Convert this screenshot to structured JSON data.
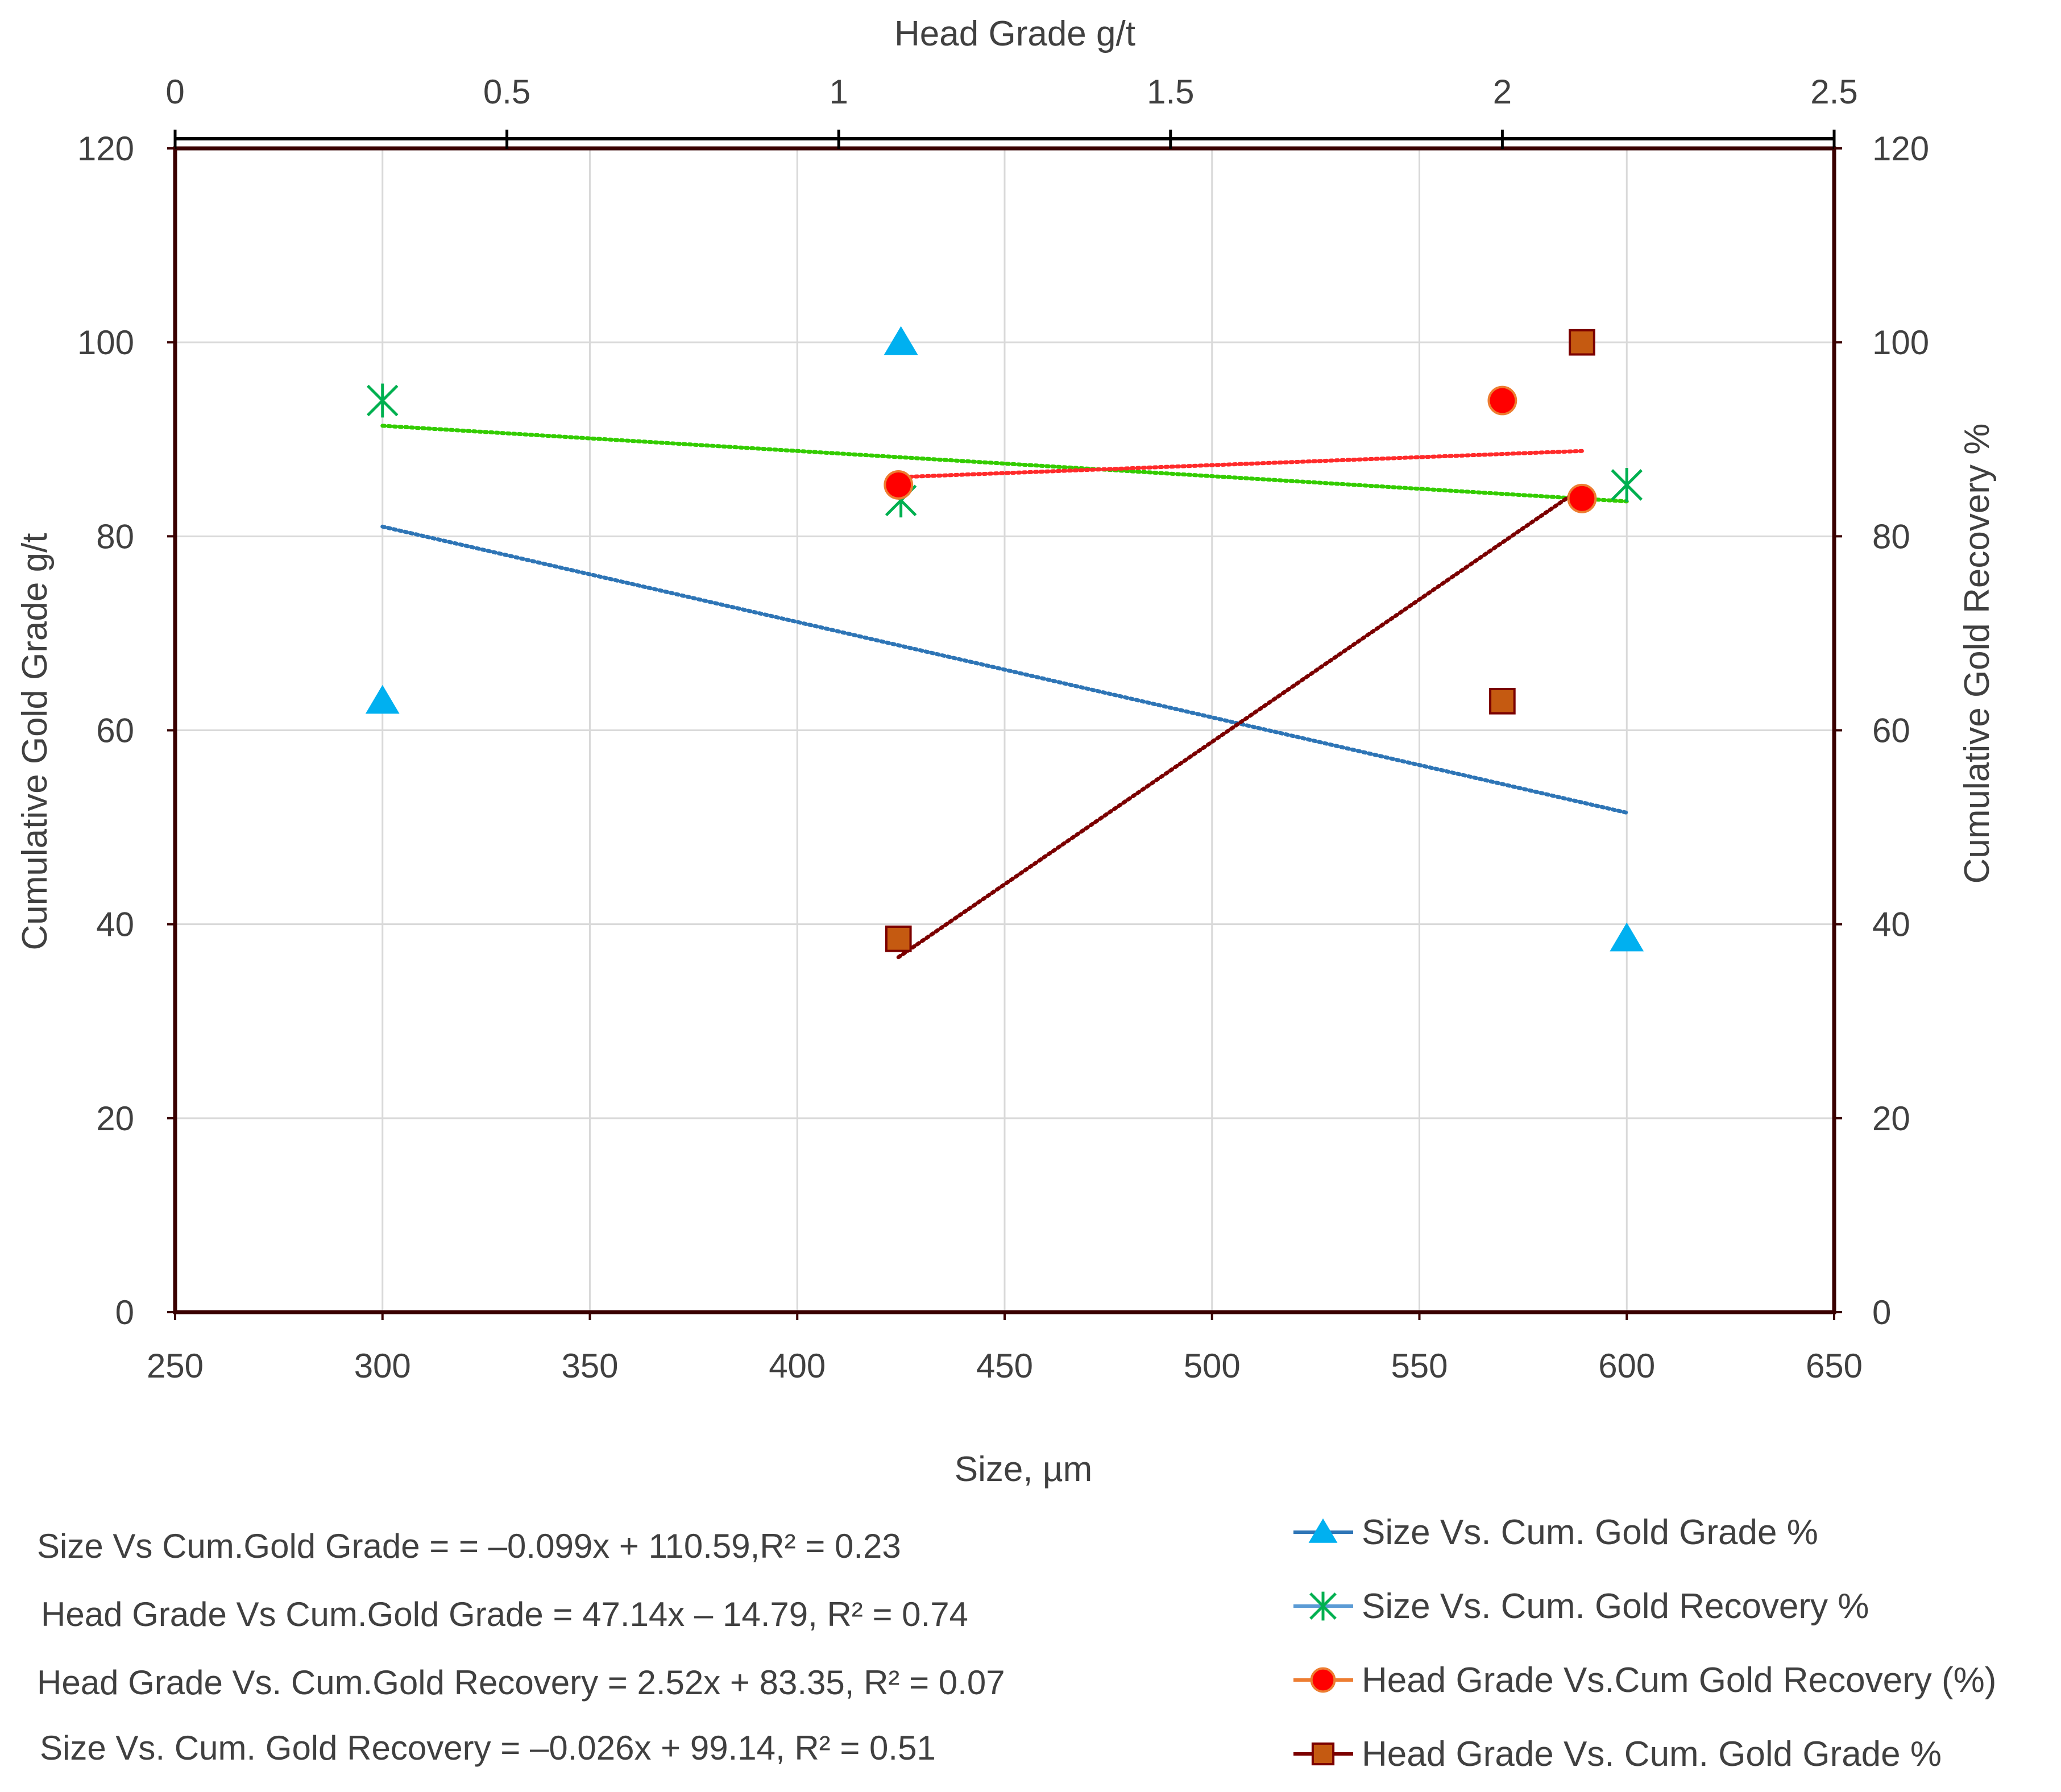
{
  "chart_data": {
    "type": "scatter",
    "axes": {
      "bottom": {
        "label": "Size, µm",
        "range": [
          250,
          650
        ],
        "ticks": [
          "250",
          "300",
          "350",
          "400",
          "450",
          "500",
          "550",
          "600",
          "650"
        ]
      },
      "top": {
        "label": "Head Grade g/t",
        "range": [
          0,
          2.5
        ],
        "ticks": [
          "0",
          "0.5",
          "1",
          "1.5",
          "2",
          "2.5"
        ]
      },
      "left": {
        "label": "Cumulative  Gold Grade g/t",
        "range": [
          0,
          120
        ],
        "ticks": [
          "0",
          "20",
          "40",
          "60",
          "80",
          "100",
          "120"
        ]
      },
      "right": {
        "label": "Cumulative Gold Recovery %",
        "range": [
          0,
          120
        ],
        "ticks": [
          "0",
          "20",
          "40",
          "60",
          "80",
          "100",
          "120"
        ]
      },
      "grid": "vertical and horizontal"
    },
    "series": [
      {
        "name": "Size Vs. Cum. Gold Grade %",
        "x_axis": "bottom",
        "y_axis": "left",
        "marker": "triangle",
        "color": "#00B0F0",
        "line_color": "#2E75B6",
        "points": [
          {
            "x": 300,
            "y": 63
          },
          {
            "x": 425,
            "y": 100
          },
          {
            "x": 600,
            "y": 38.5
          }
        ],
        "trend": {
          "color": "#2E75B6",
          "from": {
            "x": 300,
            "y": 81
          },
          "to": {
            "x": 600,
            "y": 51.5
          }
        }
      },
      {
        "name": "Size Vs. Cum. Gold Recovery %",
        "x_axis": "bottom",
        "y_axis": "right",
        "marker": "asterisk",
        "color": "#00B050",
        "line_color": "#5B9BD5",
        "points": [
          {
            "x": 300,
            "y": 94
          },
          {
            "x": 425,
            "y": 83.7
          },
          {
            "x": 600,
            "y": 85.3
          }
        ],
        "trend": {
          "color": "#33CC00",
          "from": {
            "x": 300,
            "y": 91.4
          },
          "to": {
            "x": 600,
            "y": 83.6
          }
        }
      },
      {
        "name": "Head Grade Vs.Cum Gold Recovery (%)",
        "x_axis": "top",
        "y_axis": "right",
        "marker": "circle",
        "color": "#FF0000",
        "line_color": "#ED7D31",
        "points": [
          {
            "x": 1.09,
            "y": 85.3
          },
          {
            "x": 2.0,
            "y": 94
          },
          {
            "x": 2.12,
            "y": 83.9
          }
        ],
        "trend": {
          "color": "#FF2A2A",
          "from": {
            "x": 1.09,
            "y": 86.1
          },
          "to": {
            "x": 2.12,
            "y": 88.8
          }
        }
      },
      {
        "name": "Head Grade Vs. Cum. Gold Grade %",
        "x_axis": "top",
        "y_axis": "left",
        "marker": "square",
        "color": "#C55A11",
        "line_color": "#7B0000",
        "points": [
          {
            "x": 1.09,
            "y": 38.5
          },
          {
            "x": 2.0,
            "y": 63
          },
          {
            "x": 2.12,
            "y": 100
          }
        ],
        "trend": {
          "color": "#7B0000",
          "from": {
            "x": 1.09,
            "y": 36.6
          },
          "to": {
            "x": 2.12,
            "y": 85
          }
        }
      }
    ],
    "equations": [
      "Size Vs Cum.Gold  Grade = = –0.099x + 110.59,R² = 0.23",
      "Head Grade Vs Cum.Gold  Grade = 47.14x – 14.79, R² = 0.74",
      "Head Grade Vs. Cum.Gold  Recovery =  2.52x + 83.35, R² = 0.07",
      "Size Vs. Cum. Gold Recovery = –0.026x + 99.14, R² = 0.51"
    ],
    "legend_position": "bottom-right",
    "plot_border_color": "#3A0000"
  }
}
